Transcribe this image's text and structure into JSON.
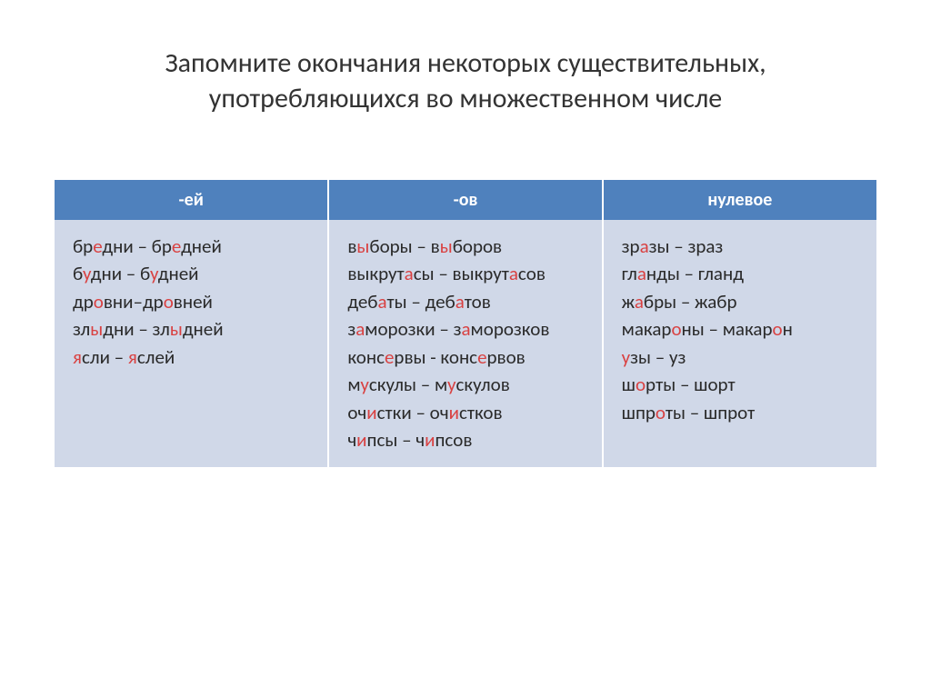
{
  "title_line1": "Запомните окончания некоторых существительных,",
  "title_line2": "употребляющихся во множественном числе",
  "colors": {
    "header_bg": "#4f81bd",
    "header_text": "#ffffff",
    "body_bg": "#d0d8e8",
    "body_text": "#2a2a2a",
    "highlight": "#d94141"
  },
  "columns": [
    {
      "header": "-ей"
    },
    {
      "header": "-ов"
    },
    {
      "header": "нулевое"
    }
  ],
  "cells": {
    "col0": [
      [
        [
          "бр",
          0
        ],
        [
          "е",
          1
        ],
        [
          "дни – бр",
          0
        ],
        [
          "е",
          1
        ],
        [
          "дней",
          0
        ]
      ],
      [
        [
          "б",
          0
        ],
        [
          "у",
          1
        ],
        [
          "дни – б",
          0
        ],
        [
          "у",
          1
        ],
        [
          "дней",
          0
        ]
      ],
      [
        [
          "др",
          0
        ],
        [
          "о",
          1
        ],
        [
          "вни–др",
          0
        ],
        [
          "о",
          1
        ],
        [
          "вней",
          0
        ]
      ],
      [
        [
          "зл",
          0
        ],
        [
          "ы",
          1
        ],
        [
          "дни – зл",
          0
        ],
        [
          "ы",
          1
        ],
        [
          "дней",
          0
        ]
      ],
      [
        [
          "я",
          1
        ],
        [
          "сли – ",
          0
        ],
        [
          "я",
          1
        ],
        [
          "слей",
          0
        ]
      ]
    ],
    "col1": [
      [
        [
          "в",
          0
        ],
        [
          "ы",
          1
        ],
        [
          "боры – в",
          0
        ],
        [
          "ы",
          1
        ],
        [
          "боров",
          0
        ]
      ],
      [
        [
          "выкрут",
          0
        ],
        [
          "а",
          1
        ],
        [
          "сы – выкрут",
          0
        ],
        [
          "а",
          1
        ],
        [
          "сов",
          0
        ]
      ],
      [
        [
          "деб",
          0
        ],
        [
          "а",
          1
        ],
        [
          "ты – деб",
          0
        ],
        [
          "а",
          1
        ],
        [
          "тов",
          0
        ]
      ],
      [
        [
          "з",
          0
        ],
        [
          "а",
          1
        ],
        [
          "морозки – з",
          0
        ],
        [
          "а",
          1
        ],
        [
          "морозков",
          0
        ]
      ],
      [
        [
          "конс",
          0
        ],
        [
          "е",
          1
        ],
        [
          "рвы - конс",
          0
        ],
        [
          "е",
          1
        ],
        [
          "рвов",
          0
        ]
      ],
      [
        [
          "м",
          0
        ],
        [
          "у",
          1
        ],
        [
          "скулы – м",
          0
        ],
        [
          "у",
          1
        ],
        [
          "скулов",
          0
        ]
      ],
      [
        [
          "оч",
          0
        ],
        [
          "и",
          1
        ],
        [
          "стки – оч",
          0
        ],
        [
          "и",
          1
        ],
        [
          "стков",
          0
        ]
      ],
      [
        [
          "ч",
          0
        ],
        [
          "и",
          1
        ],
        [
          "псы – ч",
          0
        ],
        [
          "и",
          1
        ],
        [
          "псов",
          0
        ]
      ]
    ],
    "col2": [
      [
        [
          "зр",
          0
        ],
        [
          "а",
          1
        ],
        [
          "зы – зраз",
          0
        ]
      ],
      [
        [
          "гл",
          0
        ],
        [
          "а",
          1
        ],
        [
          "нды – гланд",
          0
        ]
      ],
      [
        [
          "ж",
          0
        ],
        [
          "а",
          1
        ],
        [
          "бры – жабр",
          0
        ]
      ],
      [
        [
          "макар",
          0
        ],
        [
          "о",
          1
        ],
        [
          "ны – макар",
          0
        ],
        [
          "о",
          1
        ],
        [
          "н",
          0
        ]
      ],
      [
        [
          "у",
          1
        ],
        [
          "зы – уз",
          0
        ]
      ],
      [
        [
          "ш",
          0
        ],
        [
          "о",
          1
        ],
        [
          "рты – шорт",
          0
        ]
      ],
      [
        [
          "шпр",
          0
        ],
        [
          "о",
          1
        ],
        [
          "ты – шпрот",
          0
        ]
      ]
    ]
  }
}
